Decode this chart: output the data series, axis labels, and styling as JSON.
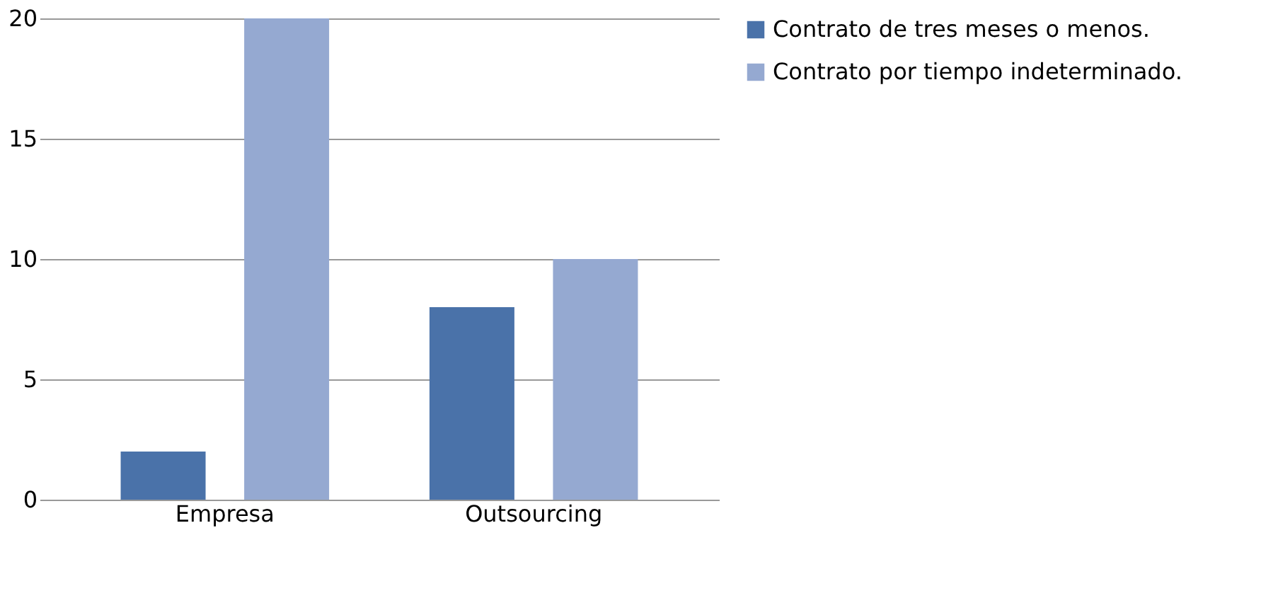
{
  "chart_data": {
    "type": "bar",
    "categories": [
      "Empresa",
      "Outsourcing"
    ],
    "series": [
      {
        "name": "Contrato de tres meses o menos.",
        "color": "#4a72a9",
        "values": [
          2,
          8
        ]
      },
      {
        "name": "Contrato por tiempo indeterminado.",
        "color": "#95a9d1",
        "values": [
          20,
          10
        ]
      }
    ],
    "ylim": [
      0,
      20
    ],
    "yticks": [
      0,
      5,
      10,
      15,
      20
    ],
    "grid": "y",
    "legend": "right"
  }
}
